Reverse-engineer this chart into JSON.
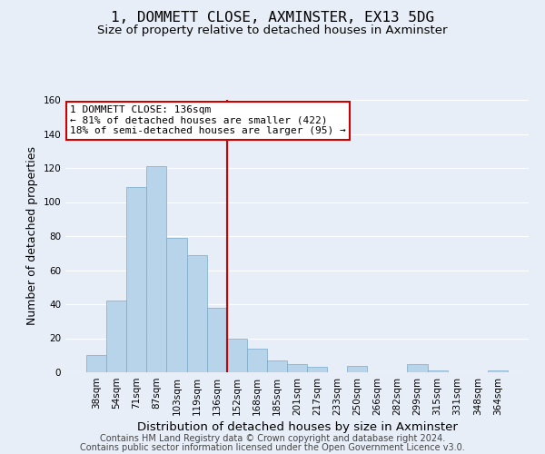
{
  "title": "1, DOMMETT CLOSE, AXMINSTER, EX13 5DG",
  "subtitle": "Size of property relative to detached houses in Axminster",
  "xlabel": "Distribution of detached houses by size in Axminster",
  "ylabel": "Number of detached properties",
  "bar_labels": [
    "38sqm",
    "54sqm",
    "71sqm",
    "87sqm",
    "103sqm",
    "119sqm",
    "136sqm",
    "152sqm",
    "168sqm",
    "185sqm",
    "201sqm",
    "217sqm",
    "233sqm",
    "250sqm",
    "266sqm",
    "282sqm",
    "299sqm",
    "315sqm",
    "331sqm",
    "348sqm",
    "364sqm"
  ],
  "bar_heights": [
    10,
    42,
    109,
    121,
    79,
    69,
    38,
    20,
    14,
    7,
    5,
    3,
    0,
    4,
    0,
    0,
    5,
    1,
    0,
    0,
    1
  ],
  "bar_color": "#b8d4ea",
  "vline_color": "#cc0000",
  "vline_index": 6,
  "annotation_text": "1 DOMMETT CLOSE: 136sqm\n← 81% of detached houses are smaller (422)\n18% of semi-detached houses are larger (95) →",
  "annotation_box_facecolor": "#ffffff",
  "annotation_box_edgecolor": "#cc0000",
  "ylim": [
    0,
    160
  ],
  "yticks": [
    0,
    20,
    40,
    60,
    80,
    100,
    120,
    140,
    160
  ],
  "footer1": "Contains HM Land Registry data © Crown copyright and database right 2024.",
  "footer2": "Contains public sector information licensed under the Open Government Licence v3.0.",
  "bg_color": "#e8eef8",
  "plot_bg_color": "#e8eef8",
  "grid_color": "#ffffff",
  "title_fontsize": 11.5,
  "subtitle_fontsize": 9.5,
  "xlabel_fontsize": 9.5,
  "ylabel_fontsize": 9,
  "tick_fontsize": 7.5,
  "annotation_fontsize": 8,
  "footer_fontsize": 7
}
